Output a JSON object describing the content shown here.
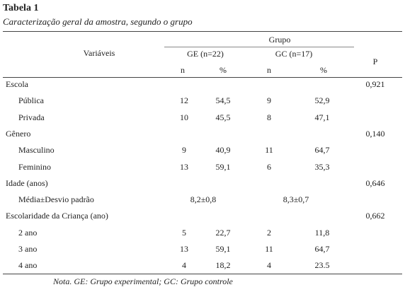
{
  "header": {
    "title": "Tabela 1",
    "subtitle": "Caracterização geral da amostra, segundo o grupo"
  },
  "table": {
    "columns": {
      "variables": "Variáveis",
      "group": "Grupo",
      "ge": "GE (n=22)",
      "gc": "GC (n=17)",
      "p": "P",
      "n_ge": "n",
      "pct_ge": "%",
      "n_gc": "n",
      "pct_gc": "%"
    },
    "groups": [
      {
        "label": "Escola",
        "p": "0,921",
        "rows": [
          [
            "Pública",
            "12",
            "54,5",
            "9",
            "52,9"
          ],
          [
            "Privada",
            "10",
            "45,5",
            "8",
            "47,1"
          ]
        ]
      },
      {
        "label": "Gênero",
        "p": "0,140",
        "rows": [
          [
            "Masculino",
            "9",
            "40,9",
            "11",
            "64,7"
          ],
          [
            "Feminino",
            "13",
            "59,1",
            "6",
            "35,3"
          ]
        ]
      },
      {
        "label": "Idade (anos)",
        "p": "0,646",
        "rows": [
          [
            "Média±Desvio padrão",
            "8,2±0,8",
            "8,3±0,7"
          ]
        ]
      },
      {
        "label": "Escolaridade da Criança (ano)",
        "p": "0,662",
        "rows": [
          [
            "2 ano",
            "5",
            "22,7",
            "2",
            "11,8"
          ],
          [
            "3 ano",
            "13",
            "59,1",
            "11",
            "64,7"
          ],
          [
            "4 ano",
            "4",
            "18,2",
            "4",
            "23.5"
          ]
        ]
      }
    ]
  },
  "note": "Nota. GE: Grupo experimental; GC: Grupo controle"
}
